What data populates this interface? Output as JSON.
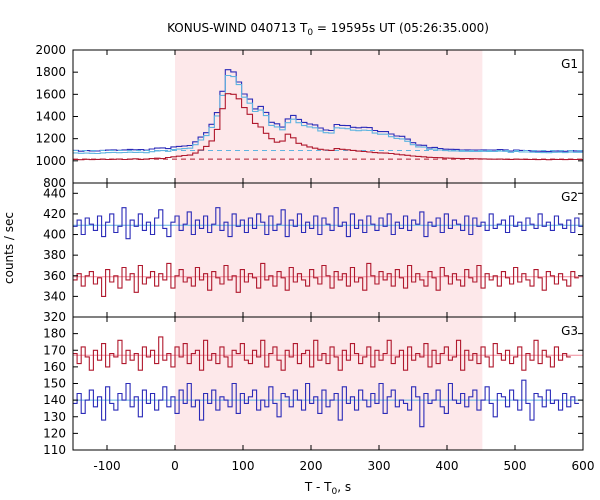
{
  "chart_data": {
    "type": "line",
    "title": "KONUS-WIND 040713 T",
    "title_sub": "0",
    "title_rest": " = 19595s UT (05:26:35.000)",
    "xlabel_main": "T - T",
    "xlabel_sub": "0",
    "xlabel_rest": ", s",
    "ylabel": "counts / sec",
    "xlim": [
      -150,
      600
    ],
    "x_ticks": [
      "-100",
      "0",
      "100",
      "200",
      "300",
      "400",
      "500",
      "600"
    ],
    "x_tick_values": [
      -100,
      0,
      100,
      200,
      300,
      400,
      500,
      600
    ],
    "highlight_interval": [
      0,
      452
    ],
    "highlight_color": "#fde8ea",
    "panels": [
      {
        "name": "G1",
        "ylim": [
          800,
          2000
        ],
        "y_ticks": [
          "800",
          "1000",
          "1200",
          "1400",
          "1600",
          "1800",
          "2000"
        ],
        "y_tick_values": [
          800,
          1000,
          1200,
          1400,
          1600,
          1800,
          2000
        ],
        "bin_width": 8,
        "x_start": -150,
        "series": [
          {
            "color": "#2b2bb8",
            "background": 1093,
            "values": [
              1094,
              1087,
              1092,
              1090,
              1089,
              1094,
              1097,
              1099,
              1095,
              1099,
              1103,
              1100,
              1101,
              1096,
              1107,
              1115,
              1117,
              1110,
              1126,
              1130,
              1134,
              1138,
              1172,
              1214,
              1254,
              1330,
              1435,
              1627,
              1822,
              1802,
              1711,
              1603,
              1557,
              1469,
              1491,
              1437,
              1348,
              1334,
              1304,
              1378,
              1410,
              1374,
              1347,
              1332,
              1324,
              1296,
              1278,
              1274,
              1328,
              1320,
              1318,
              1303,
              1298,
              1303,
              1300,
              1274,
              1264,
              1264,
              1242,
              1224,
              1221,
              1196,
              1164,
              1142,
              1140,
              1118,
              1121,
              1111,
              1105,
              1104,
              1103,
              1098,
              1099,
              1097,
              1097,
              1099,
              1098,
              1097,
              1102,
              1099,
              1089,
              1098,
              1094,
              1093,
              1090,
              1087,
              1086,
              1085,
              1089,
              1090,
              1086,
              1092,
              1090,
              1090
            ]
          },
          {
            "color": "#5fb4e0",
            "background": 1093,
            "values": [
              1072,
              1068,
              1070,
              1068,
              1066,
              1072,
              1074,
              1076,
              1073,
              1075,
              1078,
              1076,
              1077,
              1073,
              1082,
              1090,
              1092,
              1086,
              1102,
              1106,
              1110,
              1114,
              1146,
              1188,
              1228,
              1302,
              1405,
              1590,
              1770,
              1760,
              1688,
              1574,
              1520,
              1445,
              1458,
              1408,
              1320,
              1306,
              1280,
              1344,
              1376,
              1344,
              1318,
              1306,
              1298,
              1270,
              1254,
              1250,
              1298,
              1294,
              1290,
              1276,
              1272,
              1276,
              1274,
              1250,
              1240,
              1240,
              1218,
              1202,
              1198,
              1176,
              1146,
              1126,
              1124,
              1104,
              1106,
              1098,
              1092,
              1090,
              1090,
              1086,
              1086,
              1084,
              1084,
              1086,
              1085,
              1084,
              1088,
              1086,
              1077,
              1085,
              1081,
              1080,
              1078,
              1075,
              1074,
              1073,
              1077,
              1078,
              1074,
              1079,
              1077,
              1077
            ]
          },
          {
            "color": "#b0182d",
            "background": 1015,
            "values": [
              1012,
              1010,
              1014,
              1011,
              1013,
              1015,
              1012,
              1014,
              1016,
              1012,
              1015,
              1018,
              1013,
              1016,
              1020,
              1024,
              1020,
              1030,
              1036,
              1042,
              1048,
              1052,
              1070,
              1098,
              1130,
              1180,
              1284,
              1470,
              1606,
              1600,
              1560,
              1480,
              1420,
              1338,
              1305,
              1248,
              1200,
              1168,
              1178,
              1240,
              1208,
              1158,
              1142,
              1126,
              1114,
              1104,
              1098,
              1094,
              1110,
              1104,
              1100,
              1094,
              1088,
              1084,
              1080,
              1074,
              1072,
              1070,
              1066,
              1060,
              1054,
              1050,
              1044,
              1040,
              1036,
              1032,
              1030,
              1028,
              1026,
              1024,
              1022,
              1020,
              1021,
              1019,
              1018,
              1017,
              1016,
              1015,
              1016,
              1014,
              1013,
              1015,
              1014,
              1013,
              1012,
              1011,
              1012,
              1010,
              1013,
              1012,
              1011,
              1013,
              1012,
              1012
            ]
          }
        ]
      },
      {
        "name": "G2",
        "ylim": [
          320,
          450
        ],
        "y_ticks": [
          "320",
          "340",
          "360",
          "380",
          "400",
          "420",
          "440"
        ],
        "y_tick_values": [
          320,
          340,
          360,
          380,
          400,
          420,
          440
        ],
        "bin_width": 6,
        "x_start": -150,
        "series": [
          {
            "color": "#2b2bb8",
            "background": 409,
            "values": [
              408,
              414,
              400,
              416,
              410,
              404,
              418,
              398,
              412,
              420,
              402,
              408,
              426,
              396,
              414,
              408,
              420,
              404,
              412,
              400,
              416,
              424,
              406,
              398,
              412,
              418,
              404,
              410,
              422,
              400,
              414,
              406,
              418,
              402,
              410,
              426,
              404,
              412,
              398,
              420,
              408,
              414,
              402,
              416,
              406,
              420,
              412,
              400,
              418,
              404,
              410,
              424,
              398,
              414,
              408,
              420,
              402,
              412,
              406,
              418,
              400,
              416,
              410,
              404,
              426,
              408,
              412,
              398,
              420,
              406,
              414,
              402,
              418,
              410,
              404,
              416,
              408,
              420,
              400,
              412,
              406,
              418,
              404,
              414,
              410,
              422,
              398,
              412,
              408,
              416,
              402,
              420,
              406,
              414,
              410,
              404,
              418,
              400,
              416,
              408,
              412,
              404,
              420,
              406,
              410,
              414,
              402,
              418,
              408,
              412,
              404,
              416,
              410,
              406,
              420,
              408,
              412,
              404,
              418,
              410,
              406,
              414,
              402,
              416,
              408,
              412
            ]
          },
          {
            "color": "#b0182d",
            "background": 359,
            "values": [
              356,
              362,
              350,
              360,
              364,
              352,
              358,
              340,
              366,
              354,
              360,
              348,
              368,
              356,
              362,
              344,
              370,
              352,
              358,
              364,
              350,
              362,
              356,
              372,
              348,
              360,
              366,
              354,
              358,
              350,
              368,
              356,
              362,
              346,
              364,
              358,
              352,
              370,
              356,
              360,
              344,
              366,
              354,
              362,
              358,
              348,
              372,
              356,
              360,
              350,
              364,
              358,
              346,
              368,
              354,
              362,
              356,
              350,
              366,
              358,
              352,
              370,
              360,
              348,
              364,
              356,
              362,
              350,
              368,
              354,
              358,
              346,
              372,
              360,
              352,
              364,
              356,
              362,
              350,
              366,
              358,
              348,
              370,
              354,
              362,
              356,
              350,
              364,
              358,
              346,
              368,
              360,
              352,
              362,
              356,
              350,
              366,
              358,
              354,
              370,
              348,
              362,
              356,
              360,
              350,
              364,
              358,
              352,
              368,
              354,
              362,
              356,
              350,
              366,
              358,
              346,
              364,
              360,
              352,
              362,
              356,
              350,
              364,
              358
            ]
          }
        ]
      },
      {
        "name": "G3",
        "ylim": [
          110,
          190
        ],
        "y_ticks": [
          "110",
          "120",
          "130",
          "140",
          "150",
          "160",
          "170",
          "180"
        ],
        "y_tick_values": [
          110,
          120,
          130,
          140,
          150,
          160,
          170,
          180
        ],
        "bin_width": 6,
        "x_start": -150,
        "series": [
          {
            "color": "#b0182d",
            "background": 167,
            "values": [
              168,
              162,
              172,
              166,
              158,
              170,
              164,
              174,
              160,
              168,
              166,
              176,
              162,
              170,
              164,
              168,
              158,
              172,
              166,
              170,
              162,
              178,
              164,
              168,
              160,
              172,
              166,
              174,
              162,
              168,
              170,
              158,
              176,
              164,
              168,
              162,
              172,
              166,
              160,
              170,
              168,
              174,
              164,
              162,
              170,
              166,
              176,
              160,
              168,
              172,
              164,
              158,
              170,
              166,
              174,
              162,
              168,
              170,
              160,
              176,
              164,
              168,
              162,
              172,
              166,
              158,
              170,
              164,
              174,
              168,
              162,
              166,
              172,
              160,
              170,
              164,
              168,
              176,
              162,
              166,
              170,
              158,
              172,
              164,
              168,
              166,
              174,
              160,
              170,
              162,
              168,
              172,
              164,
              166,
              176,
              158,
              170,
              164,
              168,
              162,
              172,
              166,
              160,
              174,
              168,
              164,
              170,
              162,
              166,
              172,
              158,
              168,
              164,
              176,
              162,
              170,
              166,
              160,
              172,
              164,
              168,
              166
            ]
          },
          {
            "color": "#2b2bb8",
            "background": 140,
            "values": [
              138,
              144,
              132,
              140,
              146,
              136,
              142,
              128,
              148,
              138,
              134,
              144,
              140,
              150,
              136,
              142,
              130,
              146,
              138,
              144,
              134,
              140,
              148,
              136,
              142,
              132,
              146,
              138,
              150,
              136,
              140,
              128,
              144,
              138,
              146,
              134,
              142,
              140,
              136,
              150,
              132,
              144,
              138,
              142,
              146,
              134,
              140,
              136,
              148,
              138,
              130,
              144,
              142,
              136,
              146,
              140,
              134,
              150,
              138,
              142,
              132,
              146,
              136,
              140,
              144,
              128,
              148,
              138,
              142,
              134,
              146,
              140,
              136,
              144,
              138,
              150,
              132,
              142,
              146,
              136,
              140,
              138,
              134,
              148,
              142,
              124,
              144,
              138,
              140,
              146,
              136,
              132,
              150,
              140,
              138,
              144,
              136,
              142,
              146,
              134,
              140,
              148,
              138,
              130,
              144,
              142,
              136,
              146,
              140,
              134,
              152,
              138,
              128,
              144,
              142,
              136,
              146,
              138,
              140,
              134,
              144,
              136,
              142,
              138
            ]
          }
        ]
      }
    ]
  }
}
